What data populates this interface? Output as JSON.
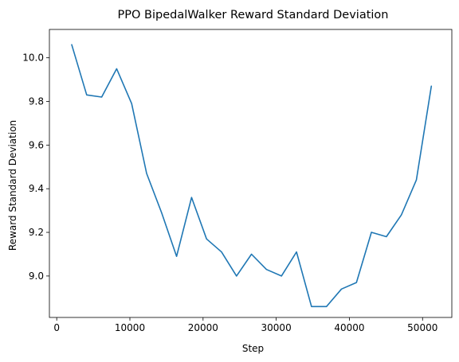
{
  "chart_data": {
    "type": "line",
    "title": "PPO BipedalWalker Reward Standard Deviation",
    "xlabel": "Step",
    "ylabel": "Reward Standard Deviation",
    "xlim": [
      -1000,
      54000
    ],
    "ylim": [
      8.81,
      10.13
    ],
    "xticks": [
      0,
      10000,
      20000,
      30000,
      40000,
      50000
    ],
    "xtick_labels": [
      "0",
      "10000",
      "20000",
      "30000",
      "40000",
      "50000"
    ],
    "yticks": [
      9.0,
      9.2,
      9.4,
      9.6,
      9.8,
      10.0
    ],
    "ytick_labels": [
      "9.0",
      "9.2",
      "9.4",
      "9.6",
      "9.8",
      "10.0"
    ],
    "grid": false,
    "series": [
      {
        "color": "#1f77b4",
        "x": [
          2048,
          4096,
          6144,
          8192,
          10240,
          12288,
          14336,
          16384,
          18432,
          20480,
          22528,
          24576,
          26624,
          28672,
          30720,
          32768,
          34816,
          36864,
          38912,
          40960,
          43008,
          45056,
          47104,
          49152,
          51200
        ],
        "y": [
          10.06,
          9.83,
          9.82,
          9.95,
          9.79,
          9.47,
          9.29,
          9.09,
          9.36,
          9.17,
          9.11,
          9.0,
          9.1,
          9.03,
          9.0,
          9.11,
          8.86,
          8.86,
          8.94,
          8.97,
          9.2,
          9.18,
          9.28,
          9.44,
          9.87
        ]
      }
    ]
  }
}
